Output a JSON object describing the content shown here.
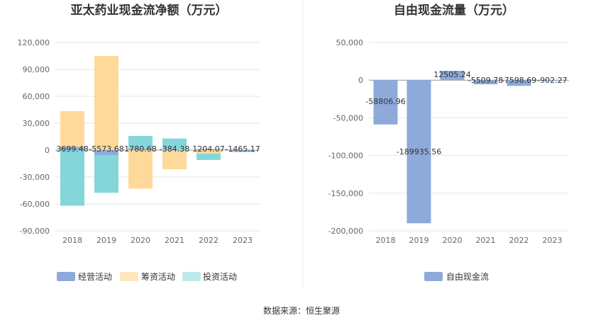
{
  "source": "数据来源：恒生聚源",
  "colors": {
    "operating": "#8eaadb",
    "financing": "#ffd999",
    "investing": "#84d6d9",
    "grid": "#e6e6e6",
    "axis": "#cccccc",
    "divider": "#e8e8e8"
  },
  "chart_data": [
    {
      "type": "bar",
      "stacked": true,
      "title": "亚太药业现金流净额（万元）",
      "categories": [
        "2018",
        "2019",
        "2020",
        "2021",
        "2022",
        "2023"
      ],
      "yticks": [
        "120,000",
        "90,000",
        "60,000",
        "30,000",
        "0",
        "-30,000",
        "-60,000",
        "-90,000"
      ],
      "ylim": [
        -90000,
        120000
      ],
      "legend_position": "bottom",
      "series": [
        {
          "name": "经营活动",
          "color": "#8eaadb",
          "values": [
            3699.48,
            -5573.68,
            1780.68,
            -384.38,
            1204.07,
            -1465.17
          ]
        },
        {
          "name": "筹资活动",
          "color": "#ffd999",
          "values": [
            39800,
            105000,
            -43000,
            -21000,
            -4000,
            -500
          ]
        },
        {
          "name": "投资活动",
          "color": "#84d6d9",
          "values": [
            -62000,
            -42000,
            14000,
            13000,
            -7000,
            -300
          ]
        }
      ],
      "data_labels": [
        "3699.48",
        "-5573.68",
        "1780.68",
        "-384.38",
        "1204.07",
        "-1465.17"
      ]
    },
    {
      "type": "bar",
      "title": "自由现金流量（万元）",
      "categories": [
        "2018",
        "2019",
        "2020",
        "2021",
        "2022",
        "2023"
      ],
      "yticks": [
        "50,000",
        "0",
        "-50,000",
        "-100,000",
        "-150,000",
        "-200,000"
      ],
      "ylim": [
        -200000,
        50000
      ],
      "legend_position": "bottom",
      "series": [
        {
          "name": "自由现金流",
          "color": "#8eaadb",
          "values": [
            -58806.96,
            -189935.56,
            12505.24,
            -5509.78,
            -7598.69,
            -902.27
          ]
        }
      ],
      "data_labels": [
        "-58806.96",
        "-189935.56",
        "12505.24",
        "-5509.78",
        "-7598.69",
        "-902.27"
      ]
    }
  ]
}
